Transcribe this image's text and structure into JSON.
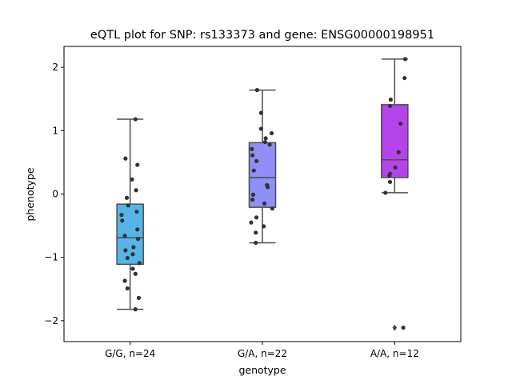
{
  "chart_data": {
    "type": "box",
    "title": "eQTL plot for SNP: rs133373 and gene: ENSG00000198951",
    "xlabel": "genotype",
    "ylabel": "phenotype",
    "ylim": [
      -2.33,
      2.33
    ],
    "yticks": [
      -2,
      -1,
      0,
      1,
      2
    ],
    "ytick_labels": [
      "−2",
      "−1",
      "0",
      "1",
      "2"
    ],
    "grid": false,
    "legend": "none",
    "categories": [
      "G/G, n=24",
      "G/A, n=22",
      "A/A, n=12"
    ],
    "boxes": [
      {
        "category": "G/G, n=24",
        "color": "#56b4e9",
        "whisker_low": -1.82,
        "q1": -1.11,
        "median": -0.69,
        "q3": -0.16,
        "whisker_high": 1.18,
        "outliers": [],
        "points": [
          {
            "x": 0.08,
            "y": 1.18
          },
          {
            "x": -0.07,
            "y": 0.56
          },
          {
            "x": 0.11,
            "y": 0.46
          },
          {
            "x": 0.03,
            "y": 0.23
          },
          {
            "x": 0.09,
            "y": 0.06
          },
          {
            "x": -0.05,
            "y": -0.06
          },
          {
            "x": -0.03,
            "y": -0.18
          },
          {
            "x": 0.1,
            "y": -0.28
          },
          {
            "x": -0.13,
            "y": -0.33
          },
          {
            "x": -0.12,
            "y": -0.42
          },
          {
            "x": 0.11,
            "y": -0.56
          },
          {
            "x": -0.08,
            "y": -0.66
          },
          {
            "x": 0.12,
            "y": -0.71
          },
          {
            "x": 0.05,
            "y": -0.84
          },
          {
            "x": -0.07,
            "y": -0.89
          },
          {
            "x": 0.04,
            "y": -0.95
          },
          {
            "x": -0.04,
            "y": -1.01
          },
          {
            "x": 0.14,
            "y": -1.09
          },
          {
            "x": 0.04,
            "y": -1.18
          },
          {
            "x": 0.08,
            "y": -1.26
          },
          {
            "x": -0.08,
            "y": -1.37
          },
          {
            "x": -0.04,
            "y": -1.49
          },
          {
            "x": 0.13,
            "y": -1.64
          },
          {
            "x": 0.08,
            "y": -1.82
          }
        ]
      },
      {
        "category": "G/A, n=22",
        "color": "#8f8ff5",
        "whisker_low": -0.77,
        "q1": -0.21,
        "median": 0.26,
        "q3": 0.81,
        "whisker_high": 1.64,
        "outliers": [],
        "points": [
          {
            "x": -0.08,
            "y": 1.64
          },
          {
            "x": -0.02,
            "y": 1.28
          },
          {
            "x": -0.02,
            "y": 1.03
          },
          {
            "x": 0.14,
            "y": 0.96
          },
          {
            "x": 0.05,
            "y": 0.88
          },
          {
            "x": 0.04,
            "y": 0.82
          },
          {
            "x": 0.11,
            "y": 0.78
          },
          {
            "x": -0.16,
            "y": 0.71
          },
          {
            "x": -0.15,
            "y": 0.61
          },
          {
            "x": -0.09,
            "y": 0.52
          },
          {
            "x": -0.13,
            "y": 0.37
          },
          {
            "x": 0.07,
            "y": 0.14
          },
          {
            "x": 0.08,
            "y": 0.11
          },
          {
            "x": -0.14,
            "y": -0.01
          },
          {
            "x": -0.15,
            "y": -0.09
          },
          {
            "x": 0.03,
            "y": -0.15
          },
          {
            "x": 0.15,
            "y": -0.23
          },
          {
            "x": -0.09,
            "y": -0.37
          },
          {
            "x": -0.17,
            "y": -0.45
          },
          {
            "x": 0.02,
            "y": -0.51
          },
          {
            "x": -0.1,
            "y": -0.61
          },
          {
            "x": -0.1,
            "y": -0.77
          }
        ]
      },
      {
        "category": "A/A, n=12",
        "color": "#b545ea",
        "whisker_low": 0.02,
        "q1": 0.26,
        "median": 0.54,
        "q3": 1.41,
        "whisker_high": 2.13,
        "outliers": [
          -2.11
        ],
        "points": [
          {
            "x": 0.16,
            "y": 2.13
          },
          {
            "x": 0.15,
            "y": 1.83
          },
          {
            "x": -0.06,
            "y": 1.49
          },
          {
            "x": -0.07,
            "y": 1.39
          },
          {
            "x": 0.09,
            "y": 1.11
          },
          {
            "x": 0.06,
            "y": 0.66
          },
          {
            "x": 0.01,
            "y": 0.42
          },
          {
            "x": -0.07,
            "y": 0.32
          },
          {
            "x": -0.08,
            "y": 0.29
          },
          {
            "x": -0.07,
            "y": 0.19
          },
          {
            "x": -0.14,
            "y": 0.02
          },
          {
            "x": 0.13,
            "y": -2.11
          }
        ]
      }
    ]
  }
}
